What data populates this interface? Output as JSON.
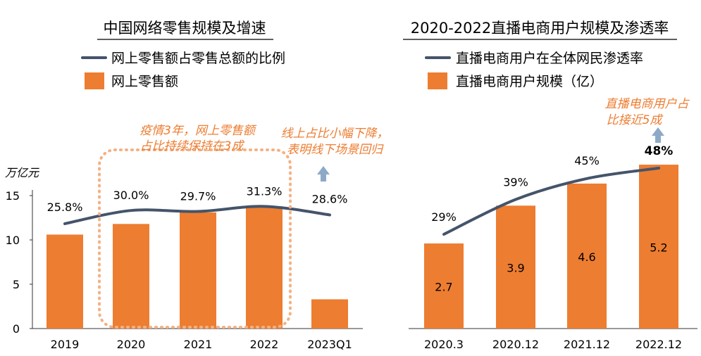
{
  "colors": {
    "bar": "#ED7D31",
    "line": "#44546A",
    "annotation": "#ED7D31",
    "arrow": "#8EA9C8",
    "axis": "#333333",
    "text": "#000000"
  },
  "chart_data": [
    {
      "type": "bar+line",
      "title": "中国网络零售规模及增速",
      "ylabel": "万亿元",
      "ylim": [
        0,
        15
      ],
      "yticks": [
        "0",
        "5",
        "10",
        "15"
      ],
      "categories": [
        "2019",
        "2020",
        "2021",
        "2022",
        "2023Q1"
      ],
      "legend": [
        {
          "kind": "line",
          "label": "网上零售额占零售总额的比例"
        },
        {
          "kind": "bar",
          "label": "网上零售额"
        }
      ],
      "series": [
        {
          "name": "网上零售额",
          "kind": "bar",
          "values": [
            10.6,
            11.8,
            13.1,
            13.8,
            3.3
          ]
        },
        {
          "name": "网上零售额占零售总额的比例",
          "kind": "line",
          "values": [
            25.8,
            30.0,
            29.7,
            31.3,
            28.6
          ],
          "labels": [
            "25.8%",
            "30.0%",
            "29.7%",
            "31.3%",
            "28.6%"
          ]
        }
      ],
      "annotations": [
        {
          "lines": [
            "疫情3年，网上零售额",
            "占比持续保持在3成"
          ]
        },
        {
          "lines": [
            "线上占比小幅下降，",
            "表明线下场景回归"
          ]
        }
      ]
    },
    {
      "type": "bar+line",
      "title": "2020-2022直播电商用户规模及渗透率",
      "categories": [
        "2020.3",
        "2020.12",
        "2021.12",
        "2022.12"
      ],
      "legend": [
        {
          "kind": "line",
          "label": "直播电商用户在全体网民渗透率"
        },
        {
          "kind": "bar",
          "label": "直播电商用户规模（亿）"
        }
      ],
      "series": [
        {
          "name": "直播电商用户规模（亿）",
          "kind": "bar",
          "values": [
            2.7,
            3.9,
            4.6,
            5.2
          ],
          "labels": [
            "2.7",
            "3.9",
            "4.6",
            "5.2"
          ]
        },
        {
          "name": "直播电商用户在全体网民渗透率",
          "kind": "line",
          "values": [
            29,
            39,
            45,
            48
          ],
          "labels": [
            "29%",
            "39%",
            "45%",
            "48%"
          ]
        }
      ],
      "annotations": [
        {
          "lines": [
            "直播电商用户占",
            "比接近5成"
          ]
        }
      ]
    }
  ]
}
